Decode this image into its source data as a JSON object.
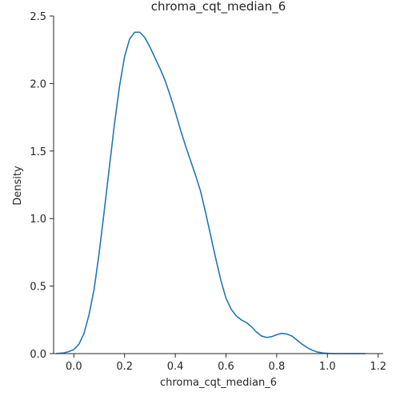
{
  "chart_data": {
    "type": "line",
    "kind": "kde-density",
    "title": "chroma_cqt_median_6",
    "xlabel": "chroma_cqt_median_6",
    "ylabel": "Density",
    "xlim": [
      -0.08,
      1.22
    ],
    "ylim": [
      0,
      2.5
    ],
    "xticks": [
      "0.0",
      "0.2",
      "0.4",
      "0.6",
      "0.8",
      "1.0",
      "1.2"
    ],
    "xtick_values": [
      0.0,
      0.2,
      0.4,
      0.6,
      0.8,
      1.0,
      1.2
    ],
    "yticks": [
      "0.0",
      "0.5",
      "1.0",
      "1.5",
      "2.0",
      "2.5"
    ],
    "ytick_values": [
      0.0,
      0.5,
      1.0,
      1.5,
      2.0,
      2.5
    ],
    "grid": false,
    "color": "#1f77b4",
    "series": [
      {
        "x": [
          -0.07,
          -0.04,
          -0.02,
          0.0,
          0.02,
          0.04,
          0.06,
          0.08,
          0.1,
          0.12,
          0.14,
          0.16,
          0.18,
          0.2,
          0.22,
          0.24,
          0.26,
          0.28,
          0.3,
          0.32,
          0.34,
          0.36,
          0.38,
          0.4,
          0.42,
          0.44,
          0.46,
          0.48,
          0.5,
          0.52,
          0.54,
          0.56,
          0.58,
          0.6,
          0.62,
          0.64,
          0.66,
          0.68,
          0.7,
          0.72,
          0.74,
          0.76,
          0.78,
          0.8,
          0.82,
          0.84,
          0.86,
          0.88,
          0.9,
          0.92,
          0.94,
          0.96,
          0.98,
          1.0,
          1.02,
          1.04,
          1.06,
          1.08,
          1.1,
          1.12,
          1.15
        ],
        "y": [
          0.0,
          0.005,
          0.015,
          0.03,
          0.07,
          0.15,
          0.29,
          0.48,
          0.75,
          1.06,
          1.38,
          1.7,
          1.98,
          2.2,
          2.33,
          2.38,
          2.38,
          2.34,
          2.27,
          2.19,
          2.11,
          2.02,
          1.91,
          1.79,
          1.66,
          1.54,
          1.43,
          1.32,
          1.2,
          1.04,
          0.87,
          0.7,
          0.54,
          0.41,
          0.33,
          0.28,
          0.25,
          0.23,
          0.2,
          0.16,
          0.13,
          0.12,
          0.125,
          0.14,
          0.15,
          0.145,
          0.13,
          0.1,
          0.07,
          0.045,
          0.025,
          0.012,
          0.005,
          0.002,
          0.0,
          0.0,
          0.0,
          0.0,
          0.0,
          0.0,
          0.0
        ]
      }
    ]
  }
}
